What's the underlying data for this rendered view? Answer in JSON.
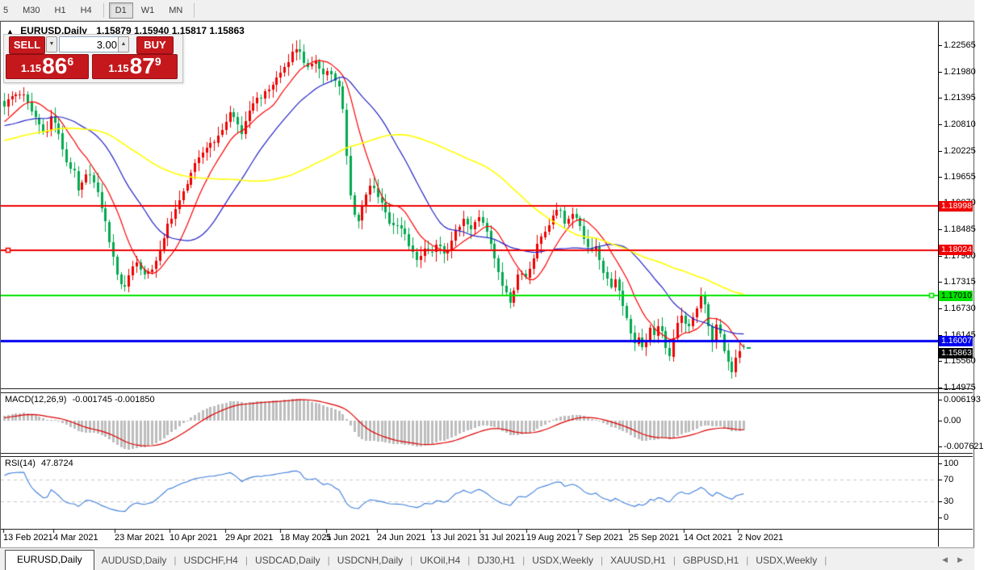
{
  "toolbar": {
    "partial_button": "5",
    "buttons": [
      "M30",
      "H1",
      "H4",
      "D1",
      "W1",
      "MN"
    ],
    "active": "D1"
  },
  "window": {
    "title": "EURUSD,Daily",
    "ohlc_text": "1.15879 1.15940 1.15817 1.15863",
    "collapse_arrow": "▲"
  },
  "trade_panel": {
    "sell_label": "SELL",
    "buy_label": "BUY",
    "volume": "3.00",
    "sell_price": {
      "small": "1.15",
      "big": "86",
      "sup": "6"
    },
    "buy_price": {
      "small": "1.15",
      "big": "87",
      "sup": "9"
    },
    "panel_red": "#c5181d"
  },
  "price_axis": {
    "ticks": [
      "1.22565",
      "1.21980",
      "1.21395",
      "1.20810",
      "1.20225",
      "1.19655",
      "1.19070",
      "1.18485",
      "1.17900",
      "1.17315",
      "1.16730",
      "1.16145",
      "1.15560",
      "1.14975"
    ],
    "badges": [
      {
        "text": "1.18998",
        "price": 1.18998,
        "bg": "#f00000",
        "fg": "#ffffff",
        "dy": 0
      },
      {
        "text": "1.18024",
        "price": 1.18024,
        "bg": "#f00000",
        "fg": "#ffffff",
        "dy": 0
      },
      {
        "text": "1.17010",
        "price": 1.1701,
        "bg": "#00e400",
        "fg": "#000000",
        "dy": 0
      },
      {
        "text": "1.16007",
        "price": 1.16007,
        "bg": "#0000f0",
        "fg": "#ffffff",
        "dy": 0
      },
      {
        "text": "1.15863",
        "price": 1.15863,
        "bg": "#000000",
        "fg": "#ffffff",
        "dy": 7
      }
    ]
  },
  "macd_axis": [
    {
      "text": "0.006193",
      "value": 0.006193
    },
    {
      "text": "0.00",
      "value": 0
    },
    {
      "text": "-0.007621",
      "value": -0.007621
    }
  ],
  "rsi_axis": [
    {
      "text": "100",
      "value": 100
    },
    {
      "text": "70",
      "value": 70
    },
    {
      "text": "30",
      "value": 30
    },
    {
      "text": "0",
      "value": 0
    }
  ],
  "date_axis": [
    {
      "text": "13 Feb 2021",
      "x": 2
    },
    {
      "text": "4 Mar 2021",
      "x": 64
    },
    {
      "text": "23 Mar 2021",
      "x": 140
    },
    {
      "text": "10 Apr 2021",
      "x": 208
    },
    {
      "text": "29 Apr 2021",
      "x": 277
    },
    {
      "text": "18 May 2021",
      "x": 345
    },
    {
      "text": "5 Jun 2021",
      "x": 402
    },
    {
      "text": "24 Jun 2021",
      "x": 465
    },
    {
      "text": "13 Jul 2021",
      "x": 532
    },
    {
      "text": "31 Jul 2021",
      "x": 592
    },
    {
      "text": "19 Aug 2021",
      "x": 650
    },
    {
      "text": "7 Sep 2021",
      "x": 714
    },
    {
      "text": "25 Sep 2021",
      "x": 777
    },
    {
      "text": "14 Oct 2021",
      "x": 845
    },
    {
      "text": "2 Nov 2021",
      "x": 912
    }
  ],
  "tabs": {
    "items": [
      "EURUSD,Daily",
      "AUDUSD,Daily",
      "USDCHF,H4",
      "USDCAD,Daily",
      "USDCNH,Daily",
      "UKOil,H4",
      "DJ30,H1",
      "USDX,Weekly",
      "XAUUSD,H1",
      "GBPUSD,H1",
      "USDX,Weekly"
    ],
    "active_index": 0,
    "scroll_left": "◀",
    "scroll_right": "▶"
  },
  "chart_data": {
    "type": "candlestick",
    "symbol": "EURUSD",
    "timeframe": "Daily",
    "quote": {
      "open": 1.15879,
      "high": 1.1594,
      "low": 1.15817,
      "close": 1.15863
    },
    "bars_visible": 191,
    "x_range_dates": [
      "13 Feb 2021",
      "5 Nov 2021"
    ],
    "y_range": [
      1.14957,
      1.23084
    ],
    "grid": false,
    "price_anchors": [
      [
        2,
        1.2124
      ],
      [
        14,
        1.2145
      ],
      [
        25,
        1.2152
      ],
      [
        34,
        1.212
      ],
      [
        45,
        1.2085
      ],
      [
        55,
        1.2058
      ],
      [
        62,
        1.2105
      ],
      [
        70,
        1.206
      ],
      [
        80,
        1.1998
      ],
      [
        90,
        1.1972
      ],
      [
        95,
        1.193
      ],
      [
        102,
        1.1958
      ],
      [
        108,
        1.1978
      ],
      [
        115,
        1.1945
      ],
      [
        122,
        1.1908
      ],
      [
        130,
        1.185
      ],
      [
        138,
        1.1782
      ],
      [
        146,
        1.173
      ],
      [
        152,
        1.1718
      ],
      [
        158,
        1.1752
      ],
      [
        165,
        1.1778
      ],
      [
        172,
        1.1762
      ],
      [
        178,
        1.1742
      ],
      [
        185,
        1.1758
      ],
      [
        192,
        1.1785
      ],
      [
        198,
        1.1805
      ],
      [
        205,
        1.1858
      ],
      [
        212,
        1.1882
      ],
      [
        220,
        1.191
      ],
      [
        228,
        1.1945
      ],
      [
        235,
        1.1978
      ],
      [
        243,
        1.2
      ],
      [
        252,
        1.2028
      ],
      [
        260,
        1.2042
      ],
      [
        268,
        1.2052
      ],
      [
        276,
        1.2082
      ],
      [
        283,
        1.2108
      ],
      [
        290,
        1.2088
      ],
      [
        297,
        1.2062
      ],
      [
        305,
        1.2098
      ],
      [
        312,
        1.2135
      ],
      [
        320,
        1.2142
      ],
      [
        328,
        1.2152
      ],
      [
        335,
        1.2168
      ],
      [
        342,
        1.2188
      ],
      [
        350,
        1.2208
      ],
      [
        357,
        1.2232
      ],
      [
        363,
        1.2248
      ],
      [
        368,
        1.2255
      ],
      [
        373,
        1.2218
      ],
      [
        378,
        1.2202
      ],
      [
        383,
        1.2215
      ],
      [
        388,
        1.2228
      ],
      [
        393,
        1.2205
      ],
      [
        398,
        1.2192
      ],
      [
        403,
        1.2198
      ],
      [
        408,
        1.219
      ],
      [
        413,
        1.2175
      ],
      [
        418,
        1.2162
      ],
      [
        422,
        1.2125
      ],
      [
        426,
        1.204
      ],
      [
        430,
        1.1945
      ],
      [
        434,
        1.19
      ],
      [
        438,
        1.1878
      ],
      [
        442,
        1.1868
      ],
      [
        447,
        1.1898
      ],
      [
        452,
        1.1928
      ],
      [
        457,
        1.1946
      ],
      [
        462,
        1.1932
      ],
      [
        467,
        1.1918
      ],
      [
        472,
        1.1898
      ],
      [
        477,
        1.1882
      ],
      [
        482,
        1.1855
      ],
      [
        487,
        1.1858
      ],
      [
        492,
        1.1865
      ],
      [
        497,
        1.184
      ],
      [
        502,
        1.1828
      ],
      [
        507,
        1.18
      ],
      [
        512,
        1.1785
      ],
      [
        516,
        1.1772
      ],
      [
        520,
        1.1792
      ],
      [
        524,
        1.1812
      ],
      [
        528,
        1.1798
      ],
      [
        532,
        1.1788
      ],
      [
        536,
        1.1805
      ],
      [
        540,
        1.1822
      ],
      [
        544,
        1.1806
      ],
      [
        548,
        1.1792
      ],
      [
        552,
        1.18
      ],
      [
        556,
        1.1812
      ],
      [
        560,
        1.1832
      ],
      [
        564,
        1.1852
      ],
      [
        568,
        1.1862
      ],
      [
        572,
        1.1868
      ],
      [
        576,
        1.1855
      ],
      [
        580,
        1.1845
      ],
      [
        584,
        1.1862
      ],
      [
        588,
        1.1875
      ],
      [
        592,
        1.1868
      ],
      [
        596,
        1.1862
      ],
      [
        600,
        1.1845
      ],
      [
        604,
        1.1825
      ],
      [
        608,
        1.1798
      ],
      [
        612,
        1.177
      ],
      [
        616,
        1.1748
      ],
      [
        620,
        1.1725
      ],
      [
        625,
        1.1712
      ],
      [
        630,
        1.1688
      ],
      [
        633,
        1.1702
      ],
      [
        636,
        1.1728
      ],
      [
        639,
        1.1742
      ],
      [
        642,
        1.1755
      ],
      [
        645,
        1.1748
      ],
      [
        648,
        1.174
      ],
      [
        651,
        1.1755
      ],
      [
        655,
        1.1772
      ],
      [
        659,
        1.1792
      ],
      [
        662,
        1.1812
      ],
      [
        666,
        1.1825
      ],
      [
        670,
        1.1838
      ],
      [
        674,
        1.1848
      ],
      [
        678,
        1.186
      ],
      [
        682,
        1.188
      ],
      [
        686,
        1.1898
      ],
      [
        689,
        1.1892
      ],
      [
        692,
        1.1885
      ],
      [
        695,
        1.1872
      ],
      [
        698,
        1.1862
      ],
      [
        701,
        1.1872
      ],
      [
        705,
        1.1885
      ],
      [
        708,
        1.188
      ],
      [
        712,
        1.1872
      ],
      [
        715,
        1.1862
      ],
      [
        718,
        1.185
      ],
      [
        721,
        1.1832
      ],
      [
        724,
        1.1818
      ],
      [
        727,
        1.1805
      ],
      [
        730,
        1.1795
      ],
      [
        733,
        1.1802
      ],
      [
        736,
        1.1812
      ],
      [
        739,
        1.1792
      ],
      [
        742,
        1.1772
      ],
      [
        745,
        1.1758
      ],
      [
        748,
        1.1745
      ],
      [
        751,
        1.173
      ],
      [
        754,
        1.1718
      ],
      [
        757,
        1.173
      ],
      [
        760,
        1.1742
      ],
      [
        763,
        1.1722
      ],
      [
        766,
        1.1702
      ],
      [
        769,
        1.1685
      ],
      [
        772,
        1.1665
      ],
      [
        775,
        1.1645
      ],
      [
        778,
        1.1625
      ],
      [
        781,
        1.161
      ],
      [
        784,
        1.1598
      ],
      [
        787,
        1.1603
      ],
      [
        790,
        1.1608
      ],
      [
        793,
        1.1592
      ],
      [
        796,
        1.158
      ],
      [
        799,
        1.1605
      ],
      [
        802,
        1.163
      ],
      [
        805,
        1.1618
      ],
      [
        808,
        1.1608
      ],
      [
        811,
        1.1628
      ],
      [
        814,
        1.1645
      ],
      [
        817,
        1.1622
      ],
      [
        820,
        1.1598
      ],
      [
        823,
        1.1578
      ],
      [
        826,
        1.156
      ],
      [
        829,
        1.1585
      ],
      [
        832,
        1.161
      ],
      [
        835,
        1.163
      ],
      [
        838,
        1.1648
      ],
      [
        841,
        1.1652
      ],
      [
        844,
        1.1655
      ],
      [
        847,
        1.164
      ],
      [
        850,
        1.1625
      ],
      [
        853,
        1.1636
      ],
      [
        856,
        1.1648
      ],
      [
        859,
        1.1665
      ],
      [
        862,
        1.168
      ],
      [
        865,
        1.1696
      ],
      [
        868,
        1.1712
      ],
      [
        871,
        1.168
      ],
      [
        874,
        1.1648
      ],
      [
        877,
        1.1622
      ],
      [
        880,
        1.1598
      ],
      [
        883,
        1.162
      ],
      [
        886,
        1.164
      ],
      [
        889,
        1.162
      ],
      [
        892,
        1.1602
      ],
      [
        895,
        1.158
      ],
      [
        898,
        1.156
      ],
      [
        901,
        1.1542
      ],
      [
        904,
        1.1528
      ],
      [
        907,
        1.1545
      ],
      [
        910,
        1.1568
      ],
      [
        913,
        1.1582
      ],
      [
        916,
        1.156
      ],
      [
        919,
        1.15863
      ]
    ],
    "hlines": [
      {
        "price": 1.18998,
        "color": "#f00000",
        "width": 2
      },
      {
        "price": 1.18024,
        "color": "#f00000",
        "width": 2,
        "handle_x": 8
      },
      {
        "price": 1.1701,
        "color": "#00e400",
        "width": 2,
        "handle_x": 1152
      },
      {
        "price": 1.16007,
        "color": "#0000f0",
        "width": 3
      }
    ],
    "moving_averages": [
      {
        "period": 10,
        "color": "#ff0000"
      },
      {
        "period": 25,
        "color": "#2424c8"
      },
      {
        "period": 60,
        "color": "#ffff00"
      }
    ],
    "indicators": {
      "macd": {
        "label": "MACD(12,26,9)",
        "values_label": "-0.001745 -0.001850",
        "fast": 12,
        "slow": 26,
        "signal": 9,
        "scale_max": 0.006193,
        "scale_min": -0.007621,
        "hist_color": "#bdbdbd",
        "signal_color": "#dd0000"
      },
      "rsi": {
        "label": "RSI(14)",
        "value_label": "47.8724",
        "period": 14,
        "levels": [
          70,
          30
        ],
        "scale": [
          0,
          100
        ],
        "line_color": "#3d7edb",
        "level_color": "#c8c8c8"
      }
    },
    "colors": {
      "bull_up": "#ee0000",
      "bear_down": "#00a94e",
      "background": "#ffffff",
      "axis_text": "#000000"
    }
  }
}
